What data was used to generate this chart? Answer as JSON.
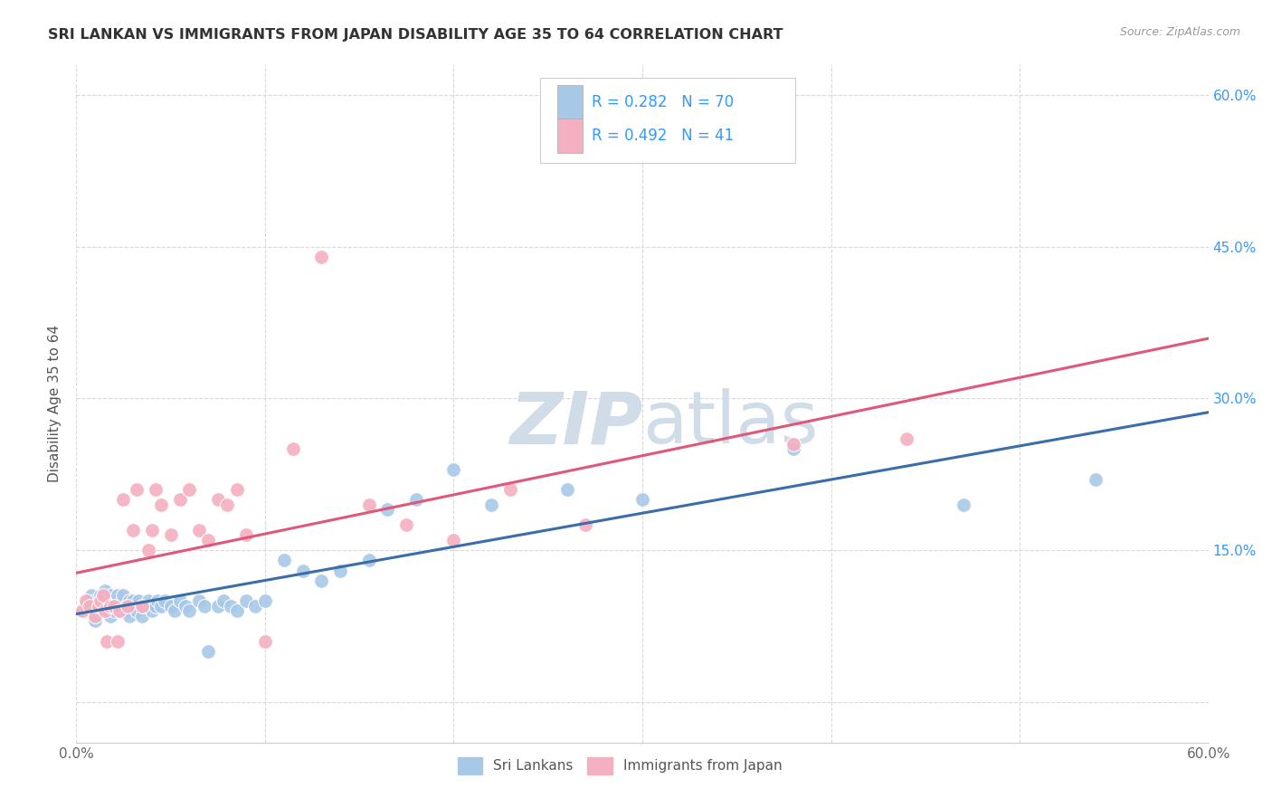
{
  "title": "SRI LANKAN VS IMMIGRANTS FROM JAPAN DISABILITY AGE 35 TO 64 CORRELATION CHART",
  "source": "Source: ZipAtlas.com",
  "ylabel": "Disability Age 35 to 64",
  "xmin": 0.0,
  "xmax": 0.6,
  "ymin": -0.04,
  "ymax": 0.63,
  "sri_lankan_R": 0.282,
  "sri_lankan_N": 70,
  "japan_R": 0.492,
  "japan_N": 41,
  "sri_lankan_color": "#a8c8e8",
  "japan_color": "#f4b0c0",
  "sri_lankan_line_color": "#3a6ea8",
  "japan_line_color": "#e05878",
  "legend_text_color": "#3399ff",
  "background_color": "#ffffff",
  "grid_color": "#d8d8d8",
  "watermark_color": "#d0dde8",
  "sri_lankan_x": [
    0.003,
    0.005,
    0.007,
    0.008,
    0.01,
    0.01,
    0.012,
    0.013,
    0.014,
    0.015,
    0.015,
    0.016,
    0.017,
    0.018,
    0.018,
    0.019,
    0.02,
    0.02,
    0.021,
    0.022,
    0.022,
    0.023,
    0.024,
    0.025,
    0.025,
    0.026,
    0.027,
    0.028,
    0.028,
    0.03,
    0.031,
    0.032,
    0.033,
    0.035,
    0.036,
    0.038,
    0.04,
    0.042,
    0.043,
    0.045,
    0.047,
    0.05,
    0.052,
    0.055,
    0.058,
    0.06,
    0.065,
    0.068,
    0.07,
    0.075,
    0.078,
    0.082,
    0.085,
    0.09,
    0.095,
    0.1,
    0.11,
    0.12,
    0.13,
    0.14,
    0.155,
    0.165,
    0.18,
    0.2,
    0.22,
    0.26,
    0.3,
    0.38,
    0.47,
    0.54
  ],
  "sri_lankan_y": [
    0.09,
    0.095,
    0.1,
    0.105,
    0.08,
    0.1,
    0.095,
    0.105,
    0.09,
    0.1,
    0.11,
    0.095,
    0.1,
    0.085,
    0.105,
    0.095,
    0.1,
    0.09,
    0.095,
    0.1,
    0.105,
    0.095,
    0.09,
    0.1,
    0.105,
    0.095,
    0.09,
    0.1,
    0.085,
    0.1,
    0.095,
    0.09,
    0.1,
    0.085,
    0.095,
    0.1,
    0.09,
    0.095,
    0.1,
    0.095,
    0.1,
    0.095,
    0.09,
    0.1,
    0.095,
    0.09,
    0.1,
    0.095,
    0.05,
    0.095,
    0.1,
    0.095,
    0.09,
    0.1,
    0.095,
    0.1,
    0.14,
    0.13,
    0.12,
    0.13,
    0.14,
    0.19,
    0.2,
    0.23,
    0.195,
    0.21,
    0.2,
    0.25,
    0.195,
    0.22
  ],
  "japan_x": [
    0.003,
    0.005,
    0.007,
    0.01,
    0.012,
    0.013,
    0.014,
    0.015,
    0.016,
    0.018,
    0.02,
    0.022,
    0.023,
    0.025,
    0.027,
    0.03,
    0.032,
    0.035,
    0.038,
    0.04,
    0.042,
    0.045,
    0.05,
    0.055,
    0.06,
    0.065,
    0.07,
    0.075,
    0.08,
    0.085,
    0.09,
    0.1,
    0.115,
    0.13,
    0.155,
    0.175,
    0.2,
    0.23,
    0.27,
    0.38,
    0.44
  ],
  "japan_y": [
    0.09,
    0.1,
    0.095,
    0.085,
    0.095,
    0.1,
    0.105,
    0.09,
    0.06,
    0.095,
    0.095,
    0.06,
    0.09,
    0.2,
    0.095,
    0.17,
    0.21,
    0.095,
    0.15,
    0.17,
    0.21,
    0.195,
    0.165,
    0.2,
    0.21,
    0.17,
    0.16,
    0.2,
    0.195,
    0.21,
    0.165,
    0.06,
    0.25,
    0.44,
    0.195,
    0.175,
    0.16,
    0.21,
    0.175,
    0.255,
    0.26
  ]
}
